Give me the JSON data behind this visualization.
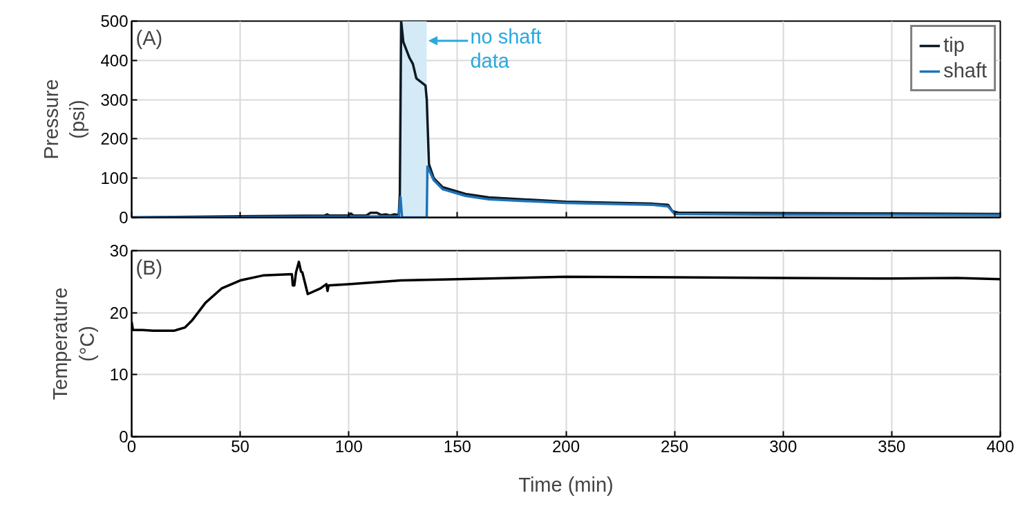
{
  "chart_data": [
    {
      "type": "line",
      "ylabel": "Pressure\n(psi)",
      "xlim": [
        0,
        400
      ],
      "xticks": [
        0,
        50,
        100,
        150,
        200,
        250,
        300,
        350,
        400
      ],
      "ylim": [
        0,
        500
      ],
      "yticks": [
        0,
        100,
        200,
        300,
        400,
        500
      ],
      "grid": true,
      "legend": "top right",
      "tick_labels": "y",
      "annotations": [
        "(A)"
      ],
      "bands": [
        {
          "axis": "x",
          "from": 123.5,
          "to": 135.9,
          "label": "no shaft data",
          "color": "#d4ebf7"
        }
      ],
      "series": [
        {
          "name": "tip",
          "color": "#0d1a24",
          "x": [
            0,
            50,
            89,
            90,
            91,
            100,
            101,
            102,
            105,
            108,
            110,
            113,
            115,
            117,
            119,
            121,
            123,
            123.5,
            124.1,
            125.1,
            127.9,
            129.5,
            131.1,
            135.3,
            135.9,
            136.9,
            139.1,
            143.2,
            153.7,
            164.5,
            200,
            240,
            247,
            249,
            252,
            300,
            350,
            400
          ],
          "values": [
            0,
            3,
            5,
            8,
            5,
            5,
            10,
            5,
            5,
            5,
            12,
            12,
            6,
            8,
            5,
            8,
            6,
            60,
            500,
            447,
            407,
            391,
            354,
            336,
            300,
            136,
            100,
            77,
            60,
            51,
            40,
            35,
            32,
            16,
            12,
            11,
            10,
            9
          ]
        },
        {
          "name": "shaft",
          "color": "#1f72b8",
          "x": [
            0,
            50,
            100,
            123,
            123.8,
            124.5,
            135.9,
            136.2,
            139.1,
            143.2,
            153.7,
            164.5,
            200,
            240,
            247,
            250,
            300,
            350,
            400
          ],
          "values": [
            0,
            1,
            2,
            3,
            52,
            0,
            0,
            130,
            95,
            72,
            55,
            46,
            37,
            32,
            28,
            9,
            7,
            7,
            6
          ]
        }
      ]
    },
    {
      "type": "line",
      "xlabel": "Time (min)",
      "ylabel": "Temperature\n(°C)",
      "xlim": [
        0,
        400
      ],
      "xticks": [
        0,
        50,
        100,
        150,
        200,
        250,
        300,
        350,
        400
      ],
      "ylim": [
        0,
        30
      ],
      "yticks": [
        0,
        10,
        20,
        30
      ],
      "grid": true,
      "annotations": [
        "(B)"
      ],
      "series": [
        {
          "color": "#000000",
          "x": [
            0,
            0.6,
            5,
            10,
            19.7,
            24.5,
            27.7,
            34,
            41.4,
            50,
            60.5,
            73.8,
            74.2,
            74.9,
            75.7,
            77,
            78,
            78.6,
            81.1,
            86.9,
            89.7,
            90.2,
            90.7,
            100,
            124,
            150,
            200,
            250,
            300,
            350,
            380,
            400
          ],
          "values": [
            18.5,
            17.2,
            17.2,
            17.1,
            17.1,
            17.6,
            18.7,
            21.6,
            23.9,
            25.2,
            26.0,
            26.2,
            24.4,
            24.4,
            26.5,
            28.2,
            26.6,
            26.5,
            23.0,
            23.9,
            24.6,
            23.5,
            24.4,
            24.6,
            25.2,
            25.4,
            25.8,
            25.7,
            25.6,
            25.5,
            25.6,
            25.4
          ]
        }
      ]
    }
  ]
}
